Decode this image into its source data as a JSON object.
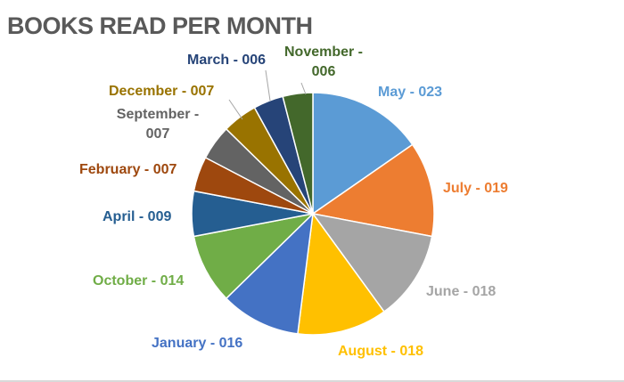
{
  "chart_data": {
    "type": "pie",
    "title": "BOOKS READ PER MONTH",
    "slices": [
      {
        "label": "May - 023",
        "value": 23,
        "color": "#5B9BD5"
      },
      {
        "label": "July - 019",
        "value": 19,
        "color": "#ED7D31"
      },
      {
        "label": "June - 018",
        "value": 18,
        "color": "#A5A5A5"
      },
      {
        "label": "August - 018",
        "value": 18,
        "color": "#FFC000"
      },
      {
        "label": "January - 016",
        "value": 16,
        "color": "#4472C4"
      },
      {
        "label": "October - 014",
        "value": 14,
        "color": "#70AD47"
      },
      {
        "label": "April - 009",
        "value": 9,
        "color": "#255E91"
      },
      {
        "label": "February - 007",
        "value": 7,
        "color": "#9E480E"
      },
      {
        "label": "September - 007",
        "value": 7,
        "color": "#636363"
      },
      {
        "label": "December - 007",
        "value": 7,
        "color": "#997300"
      },
      {
        "label": "March - 006",
        "value": 6,
        "color": "#264478"
      },
      {
        "label": "November - 006",
        "value": 6,
        "color": "#43682B"
      }
    ]
  }
}
